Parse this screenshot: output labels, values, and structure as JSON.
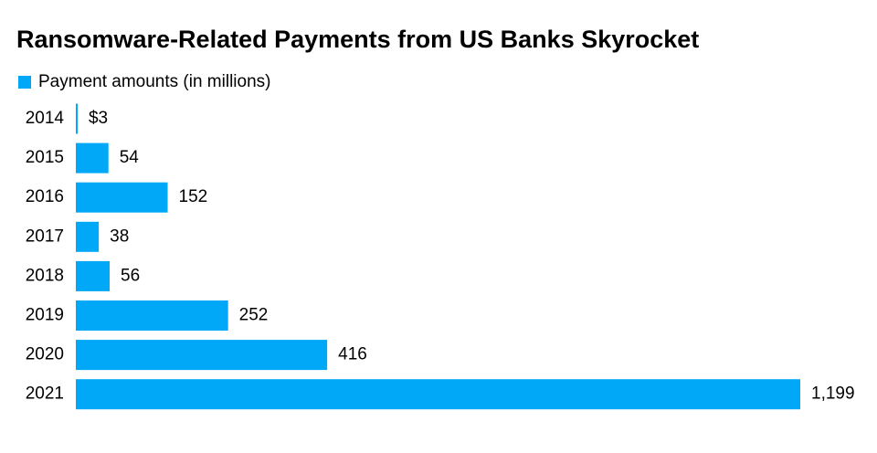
{
  "chart_data": {
    "type": "bar",
    "orientation": "horizontal",
    "title": "Ransomware-Related Payments from US Banks Skyrocket",
    "categories": [
      "2014",
      "2015",
      "2016",
      "2017",
      "2018",
      "2019",
      "2020",
      "2021"
    ],
    "series": [
      {
        "name": "Payment amounts (in millions)",
        "color": "#00a8f7",
        "values": [
          3,
          54,
          152,
          38,
          56,
          252,
          416,
          1199
        ],
        "value_labels": [
          "$3",
          "54",
          "152",
          "38",
          "56",
          "252",
          "416",
          "1,199"
        ]
      }
    ]
  }
}
